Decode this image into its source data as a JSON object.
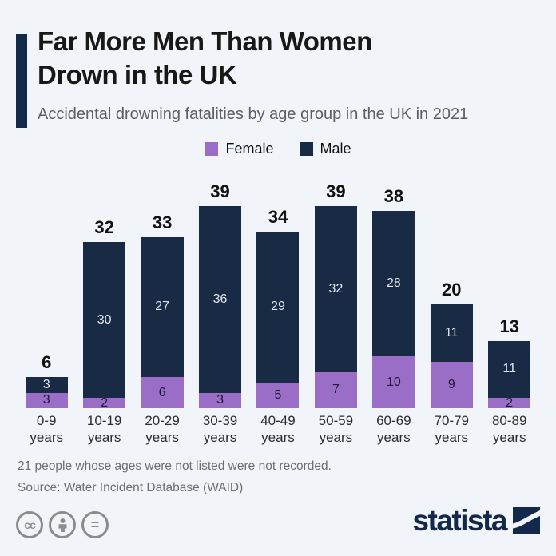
{
  "page": {
    "background": "#f1f5f9"
  },
  "header": {
    "title": "Far More Men Than Women Drown in the UK",
    "title_lines": [
      "Far More Men Than Women",
      "Drown in the UK"
    ],
    "subtitle": "Accidental drowning fatalities by age group in the UK in 2021",
    "accent_color": "#13294a"
  },
  "colors": {
    "female_purple": "#9a6dc7",
    "male_navy": "#182a44",
    "male_value_text": "#e1e5ec",
    "female_value_text": "#1c1c30",
    "background": "#f1f5f9",
    "subtitle_gray": "#5b5f64",
    "footnote_gray": "#6b6f74"
  },
  "legend": {
    "items": [
      {
        "label": "Female",
        "color": "#9a6dc7"
      },
      {
        "label": "Male",
        "color": "#182a44"
      }
    ]
  },
  "chart_data": {
    "type": "bar",
    "stacked": true,
    "title": "Accidental drowning fatalities by age group in the UK in 2021",
    "categories": [
      {
        "range": "0-9",
        "unit": "years"
      },
      {
        "range": "10-19",
        "unit": "years"
      },
      {
        "range": "20-29",
        "unit": "years"
      },
      {
        "range": "30-39",
        "unit": "years"
      },
      {
        "range": "40-49",
        "unit": "years"
      },
      {
        "range": "50-59",
        "unit": "years"
      },
      {
        "range": "60-69",
        "unit": "years"
      },
      {
        "range": "70-79",
        "unit": "years"
      },
      {
        "range": "80-89",
        "unit": "years"
      }
    ],
    "series": [
      {
        "name": "Female",
        "color": "#9a6dc7",
        "values": [
          3,
          2,
          6,
          3,
          5,
          7,
          10,
          9,
          2
        ]
      },
      {
        "name": "Male",
        "color": "#182a44",
        "values": [
          3,
          30,
          27,
          36,
          29,
          32,
          28,
          11,
          11
        ]
      }
    ],
    "totals": [
      6,
      32,
      33,
      39,
      34,
      39,
      38,
      20,
      13
    ],
    "xlabel": "",
    "ylabel": "",
    "ylim": [
      0,
      39
    ],
    "grid": false,
    "legend_position": "top"
  },
  "footnotes": {
    "note": "21 people whose ages were not listed were not recorded.",
    "source": "Source: Water Incident Database (WAID)"
  },
  "branding": {
    "logo_text": "statista",
    "license_icons": [
      {
        "name": "creative-commons",
        "glyph": "cc"
      },
      {
        "name": "attribution-person",
        "glyph": "person"
      },
      {
        "name": "no-derivatives",
        "glyph": "="
      }
    ]
  }
}
